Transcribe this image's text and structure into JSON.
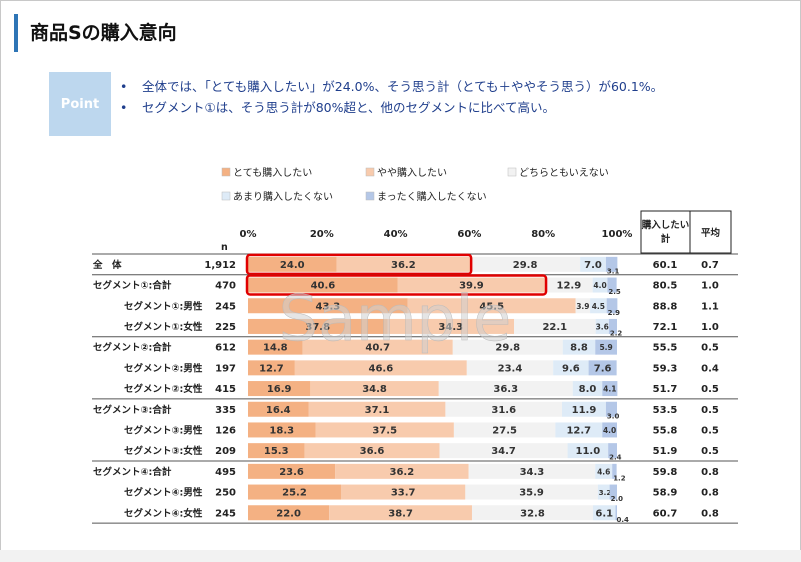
{
  "slide": {
    "title": "商品Sの購入意向",
    "point_label": "Point",
    "bullets": [
      "全体では、「とても購入したい」が24.0%、そう思う計（とても＋ややそう思う）が60.1%。",
      "セグメント①は、そう思う計が80%超と、他のセグメントに比べて高い。"
    ],
    "bullet_mark": "•",
    "watermark": "Sample"
  },
  "colors": {
    "c1": "#f4b183",
    "c2": "#f8cbad",
    "c3": "#f2f2f2",
    "c4": "#deebf7",
    "c5": "#b4c7e7",
    "highlight": "#e00000",
    "title_bar": "#2e75b6",
    "point_box": "#bdd7ee"
  },
  "chart_data": {
    "type": "stacked-bar-horizontal",
    "legend_position": "top",
    "categories_legend": [
      "とても購入したい",
      "やや購入したい",
      "どちらともいえない",
      "あまり購入したくない",
      "まったく購入したくない"
    ],
    "x_ticks": [
      "0%",
      "20%",
      "40%",
      "60%",
      "80%",
      "100%"
    ],
    "xlim": [
      0,
      100
    ],
    "n_header": "n",
    "extra_headers": [
      "購入したい\n計",
      "平均"
    ],
    "rows": [
      {
        "label": "全　体",
        "n": "1,912",
        "values": [
          24.0,
          36.2,
          29.8,
          7.0,
          3.1
        ],
        "total": "60.1",
        "avg": "0.7",
        "indent": 0,
        "group_start": true,
        "highlight": [
          0,
          1
        ]
      },
      {
        "label": "セグメント①:合計",
        "n": "470",
        "values": [
          40.6,
          39.9,
          12.9,
          4.0,
          2.5
        ],
        "total": "80.5",
        "avg": "1.0",
        "indent": 0,
        "group_start": true,
        "highlight": [
          0,
          1
        ]
      },
      {
        "label": "セグメント①:男性",
        "n": "245",
        "values": [
          43.3,
          45.5,
          3.9,
          4.5,
          2.9
        ],
        "total": "88.8",
        "avg": "1.1",
        "indent": 1
      },
      {
        "label": "セグメント①:女性",
        "n": "225",
        "values": [
          37.8,
          34.3,
          22.1,
          3.6,
          2.2
        ],
        "total": "72.1",
        "avg": "1.0",
        "indent": 1
      },
      {
        "label": "セグメント②:合計",
        "n": "612",
        "values": [
          14.8,
          40.7,
          29.8,
          8.8,
          5.9
        ],
        "total": "55.5",
        "avg": "0.5",
        "indent": 0,
        "group_start": true
      },
      {
        "label": "セグメント②:男性",
        "n": "197",
        "values": [
          12.7,
          46.6,
          23.4,
          9.6,
          7.6
        ],
        "total": "59.3",
        "avg": "0.4",
        "indent": 1
      },
      {
        "label": "セグメント②:女性",
        "n": "415",
        "values": [
          16.9,
          34.8,
          36.3,
          8.0,
          4.1
        ],
        "total": "51.7",
        "avg": "0.5",
        "indent": 1
      },
      {
        "label": "セグメント③:合計",
        "n": "335",
        "values": [
          16.4,
          37.1,
          31.6,
          11.9,
          3.0
        ],
        "total": "53.5",
        "avg": "0.5",
        "indent": 0,
        "group_start": true
      },
      {
        "label": "セグメント③:男性",
        "n": "126",
        "values": [
          18.3,
          37.5,
          27.5,
          12.7,
          4.0
        ],
        "total": "55.8",
        "avg": "0.5",
        "indent": 1
      },
      {
        "label": "セグメント③:女性",
        "n": "209",
        "values": [
          15.3,
          36.6,
          34.7,
          11.0,
          2.4
        ],
        "total": "51.9",
        "avg": "0.5",
        "indent": 1
      },
      {
        "label": "セグメント④:合計",
        "n": "495",
        "values": [
          23.6,
          36.2,
          34.3,
          4.6,
          1.2
        ],
        "total": "59.8",
        "avg": "0.8",
        "indent": 0,
        "group_start": true
      },
      {
        "label": "セグメント④:男性",
        "n": "250",
        "values": [
          25.2,
          33.7,
          35.9,
          3.2,
          2.0
        ],
        "total": "58.9",
        "avg": "0.8",
        "indent": 1
      },
      {
        "label": "セグメント④:女性",
        "n": "245",
        "values": [
          22.0,
          38.7,
          32.8,
          6.1,
          0.4
        ],
        "total": "60.7",
        "avg": "0.8",
        "indent": 1
      }
    ]
  }
}
